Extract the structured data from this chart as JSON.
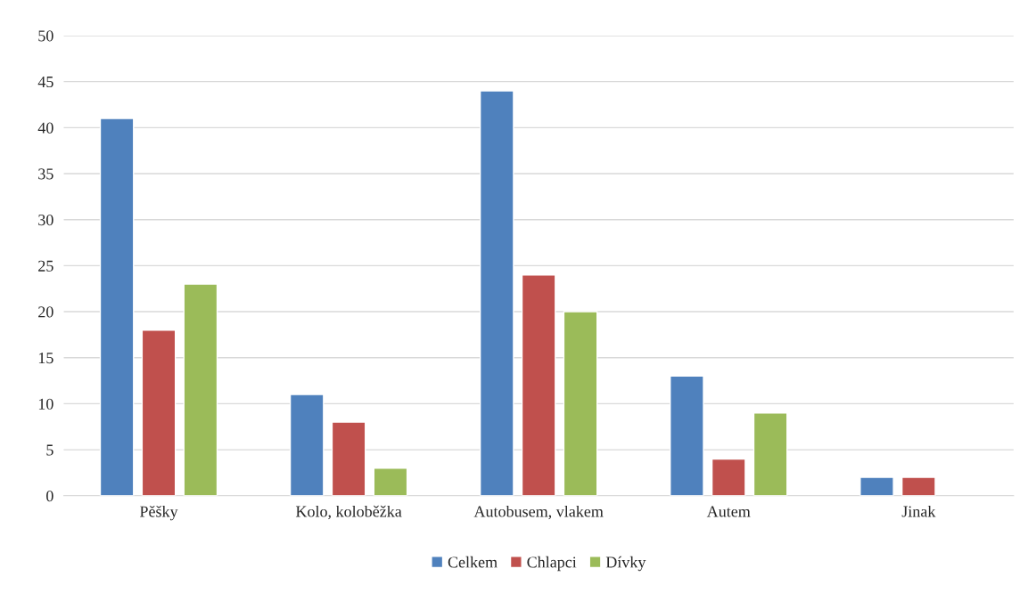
{
  "chart_data": {
    "type": "bar",
    "categories": [
      "Pěšky",
      "Kolo, koloběžka",
      "Autobusem, vlakem",
      "Autem",
      "Jinak"
    ],
    "series": [
      {
        "name": "Celkem",
        "color": "#4f81bd",
        "values": [
          41,
          11,
          44,
          13,
          2
        ]
      },
      {
        "name": "Chlapci",
        "color": "#c0504d",
        "values": [
          18,
          8,
          24,
          4,
          2
        ]
      },
      {
        "name": "Dívky",
        "color": "#9bbb59",
        "values": [
          23,
          3,
          20,
          9,
          null
        ]
      }
    ],
    "ylim": [
      0,
      50
    ],
    "yticks": [
      0,
      5,
      10,
      15,
      20,
      25,
      30,
      35,
      40,
      45,
      50
    ],
    "grid": "y",
    "legend": "bottom"
  }
}
